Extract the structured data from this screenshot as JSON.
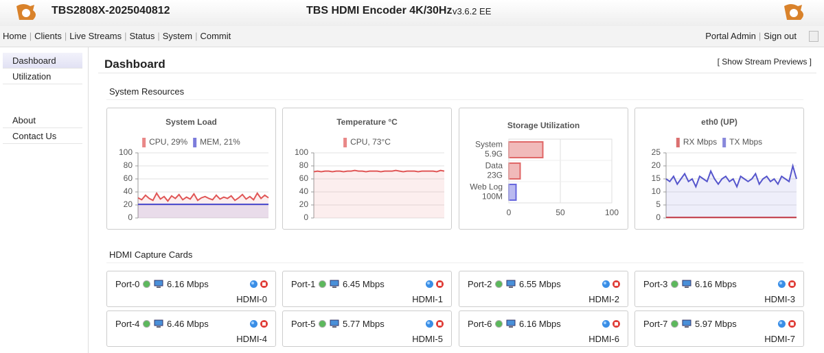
{
  "header": {
    "device": "TBS2808X-2025040812",
    "product": "TBS HDMI Encoder 4K/30Hz",
    "version": "v3.6.2 EE"
  },
  "nav": {
    "items": [
      "Home",
      "Clients",
      "Live Streams",
      "Status",
      "System",
      "Commit"
    ],
    "right": [
      "Portal Admin",
      "Sign out"
    ]
  },
  "sidebar": {
    "top": [
      "Dashboard",
      "Utilization"
    ],
    "bottom": [
      "About",
      "Contact Us"
    ]
  },
  "page": {
    "title": "Dashboard",
    "action": "[ Show Stream Previews ]",
    "section1": "System Resources",
    "section2": "HDMI Capture Cards"
  },
  "chart_data": [
    {
      "type": "line",
      "title": "System Load",
      "ylim": [
        0,
        100
      ],
      "yticks": [
        0,
        20,
        40,
        60,
        80,
        100
      ],
      "grid": true,
      "series": [
        {
          "name": "CPU, 29%",
          "color": "#e05555",
          "values": [
            31,
            28,
            35,
            30,
            27,
            38,
            29,
            33,
            26,
            34,
            30,
            36,
            28,
            32,
            29,
            37,
            27,
            31,
            33,
            30,
            28,
            35,
            29,
            32,
            30,
            34,
            27,
            31,
            36,
            29,
            33,
            28,
            38,
            30,
            35,
            31
          ]
        },
        {
          "name": "MEM, 21%",
          "color": "#4444cc",
          "values": [
            21,
            21,
            21,
            21,
            21,
            21,
            21,
            21,
            21,
            21,
            21,
            21,
            21,
            21,
            21,
            21,
            21,
            21,
            21,
            21,
            21,
            21,
            21,
            21,
            21,
            21,
            21,
            21,
            21,
            21,
            21,
            21,
            21,
            21,
            21,
            21
          ]
        }
      ]
    },
    {
      "type": "line",
      "title": "Temperature °C",
      "ylim": [
        0,
        100
      ],
      "yticks": [
        0,
        20,
        40,
        60,
        80,
        100
      ],
      "grid": true,
      "series": [
        {
          "name": "CPU, 73°C",
          "color": "#e05555",
          "values": [
            71,
            72,
            71,
            72,
            72,
            71,
            72,
            72,
            71,
            72,
            72,
            73,
            72,
            72,
            71,
            72,
            72,
            72,
            71,
            72,
            72,
            72,
            73,
            72,
            71,
            72,
            72,
            72,
            71,
            72,
            72,
            72,
            72,
            71,
            73,
            72
          ]
        }
      ]
    },
    {
      "type": "bar",
      "orientation": "horizontal",
      "title": "Storage Utilization",
      "categories": [
        "System",
        "Data",
        "Web Log"
      ],
      "category_sublabels": [
        "5.9G",
        "23G",
        "100M"
      ],
      "values": [
        33,
        11,
        7
      ],
      "colors": [
        "#e06666",
        "#e06666",
        "#6666dd"
      ],
      "xlim": [
        0,
        100
      ],
      "xticks": [
        0,
        50,
        100
      ],
      "grid": true
    },
    {
      "type": "line",
      "title": "eth0 (UP)",
      "ylim": [
        0,
        25
      ],
      "yticks": [
        0,
        5,
        10,
        15,
        20,
        25
      ],
      "grid": true,
      "series": [
        {
          "name": "RX Mbps",
          "color": "#cc3333",
          "values": [
            0.2,
            0.2,
            0.2,
            0.2,
            0.2,
            0.2,
            0.2,
            0.2,
            0.2,
            0.2,
            0.2,
            0.2,
            0.2,
            0.2,
            0.2,
            0.2,
            0.2,
            0.2,
            0.2,
            0.2,
            0.2,
            0.2,
            0.2,
            0.2,
            0.2,
            0.2,
            0.2,
            0.2,
            0.2,
            0.2,
            0.2,
            0.2,
            0.2,
            0.2,
            0.2,
            0.2
          ]
        },
        {
          "name": "TX Mbps",
          "color": "#5555cc",
          "values": [
            15,
            14,
            16,
            13,
            15,
            17,
            14,
            15,
            12,
            16,
            15,
            14,
            18,
            15,
            13,
            15,
            16,
            14,
            15,
            12,
            16,
            15,
            14,
            15,
            17,
            13,
            15,
            16,
            14,
            15,
            13,
            16,
            15,
            14,
            20,
            15
          ]
        }
      ]
    }
  ],
  "cards": [
    {
      "port": "Port-0",
      "rate": "6.16 Mbps",
      "label": "HDMI-0"
    },
    {
      "port": "Port-1",
      "rate": "6.45 Mbps",
      "label": "HDMI-1"
    },
    {
      "port": "Port-2",
      "rate": "6.55 Mbps",
      "label": "HDMI-2"
    },
    {
      "port": "Port-3",
      "rate": "6.16 Mbps",
      "label": "HDMI-3"
    },
    {
      "port": "Port-4",
      "rate": "6.46 Mbps",
      "label": "HDMI-4"
    },
    {
      "port": "Port-5",
      "rate": "5.77 Mbps",
      "label": "HDMI-5"
    },
    {
      "port": "Port-6",
      "rate": "6.16 Mbps",
      "label": "HDMI-6"
    },
    {
      "port": "Port-7",
      "rate": "5.97 Mbps",
      "label": "HDMI-7"
    }
  ]
}
